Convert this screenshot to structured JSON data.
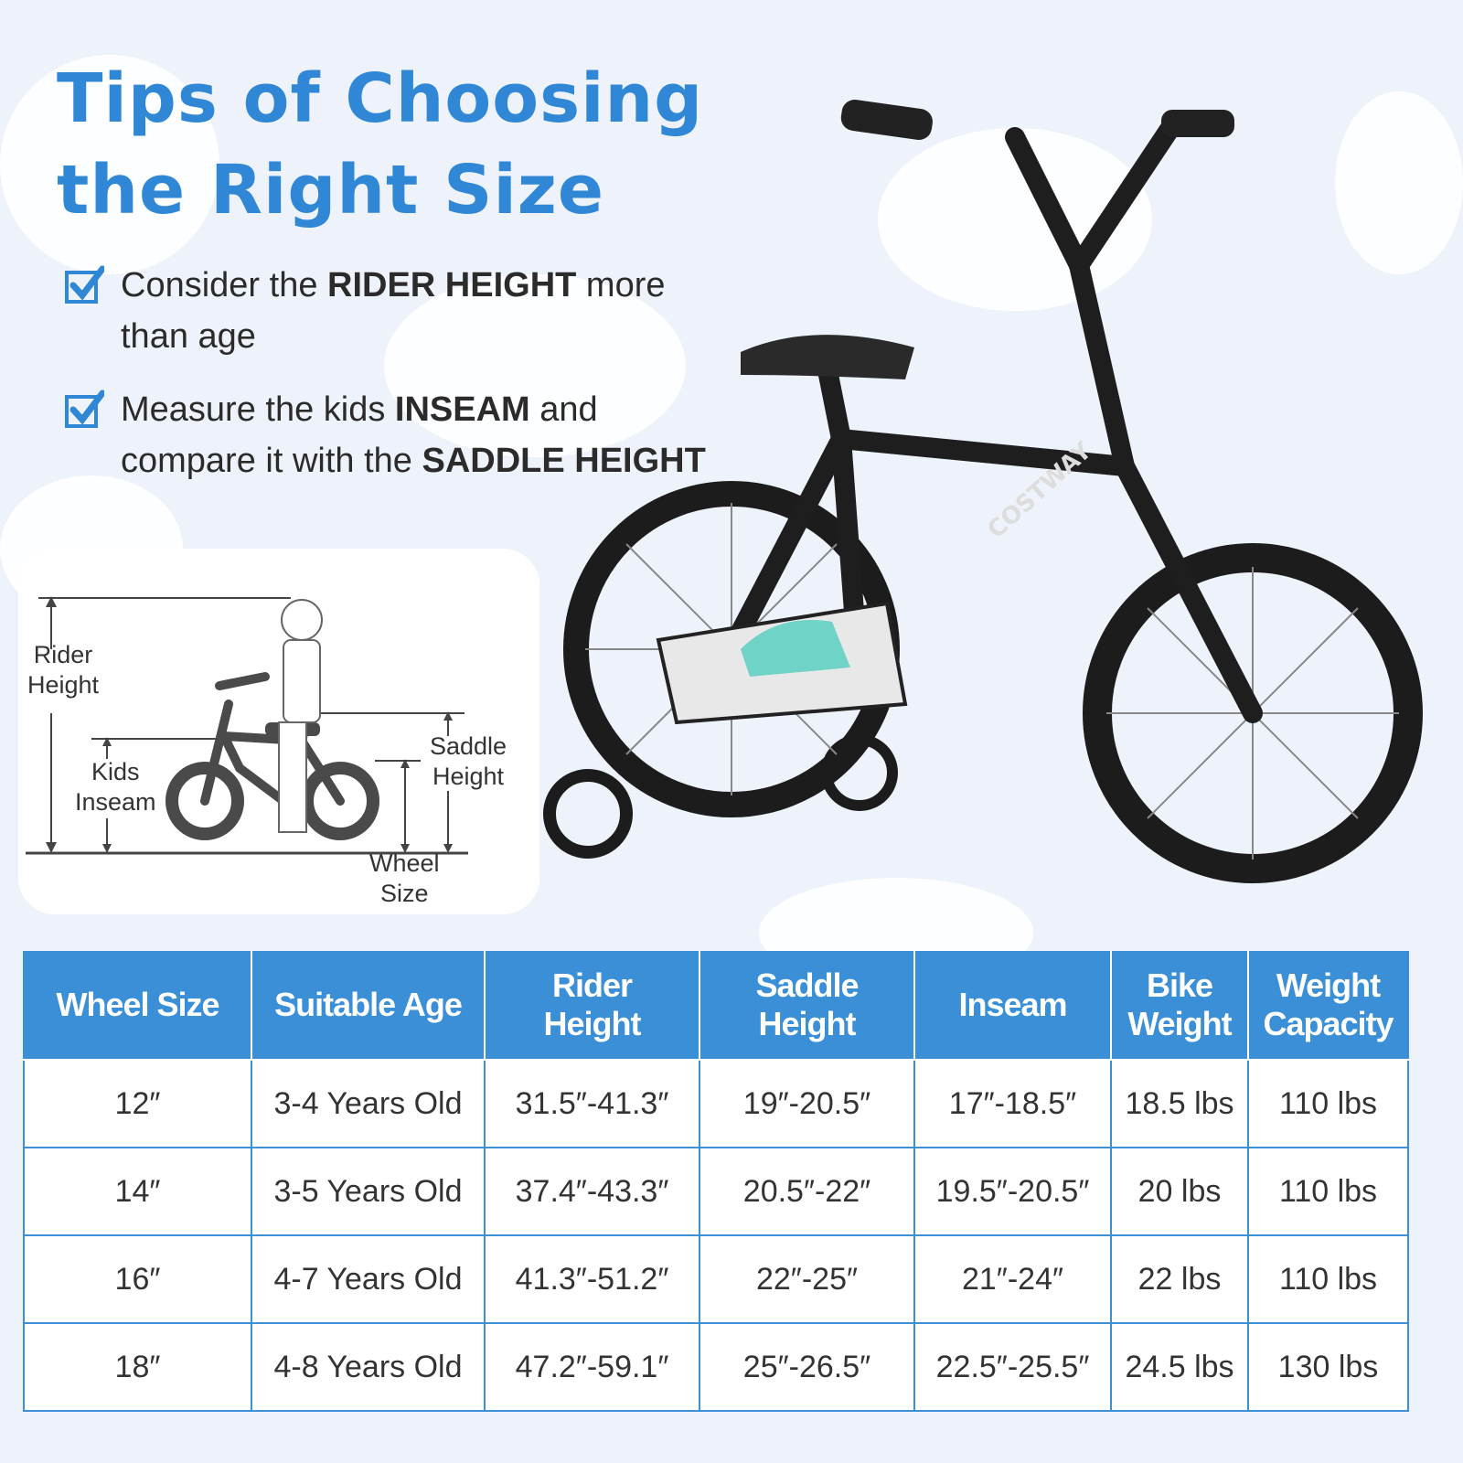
{
  "title": {
    "line1": "Tips of Choosing",
    "line2": "the Right Size"
  },
  "tips": [
    {
      "pre": "Consider the ",
      "bold": "RIDER HEIGHT",
      "post": " more",
      "line2": "than age"
    },
    {
      "pre": "Measure the kids ",
      "bold": "INSEAM",
      "post": " and",
      "line2_pre": "compare it with the ",
      "line2_bold": "SADDLE HEIGHT"
    }
  ],
  "diagram": {
    "rider_height": [
      "Rider",
      "Height"
    ],
    "kids_inseam": [
      "Kids",
      "Inseam"
    ],
    "saddle_height": [
      "Saddle",
      "Height"
    ],
    "wheel_size": [
      "Wheel",
      "Size"
    ]
  },
  "bike_brand": "COSTWAY",
  "colors": {
    "accent": "#3a8fd7",
    "title": "#2f87d6",
    "background": "#eef3fb"
  },
  "table": {
    "headers": [
      [
        "Wheel Size"
      ],
      [
        "Suitable Age"
      ],
      [
        "Rider",
        "Height"
      ],
      [
        "Saddle",
        "Height"
      ],
      [
        "Inseam"
      ],
      [
        "Bike",
        "Weight"
      ],
      [
        "Weight",
        "Capacity"
      ]
    ],
    "rows": [
      [
        "12″",
        "3-4 Years Old",
        "31.5″-41.3″",
        "19″-20.5″",
        "17″-18.5″",
        "18.5 lbs",
        "110 lbs"
      ],
      [
        "14″",
        "3-5 Years Old",
        "37.4″-43.3″",
        "20.5″-22″",
        "19.5″-20.5″",
        "20 lbs",
        "110 lbs"
      ],
      [
        "16″",
        "4-7 Years Old",
        "41.3″-51.2″",
        "22″-25″",
        "21″-24″",
        "22 lbs",
        "110 lbs"
      ],
      [
        "18″",
        "4-8 Years Old",
        "47.2″-59.1″",
        "25″-26.5″",
        "22.5″-25.5″",
        "24.5 lbs",
        "130 lbs"
      ]
    ]
  }
}
